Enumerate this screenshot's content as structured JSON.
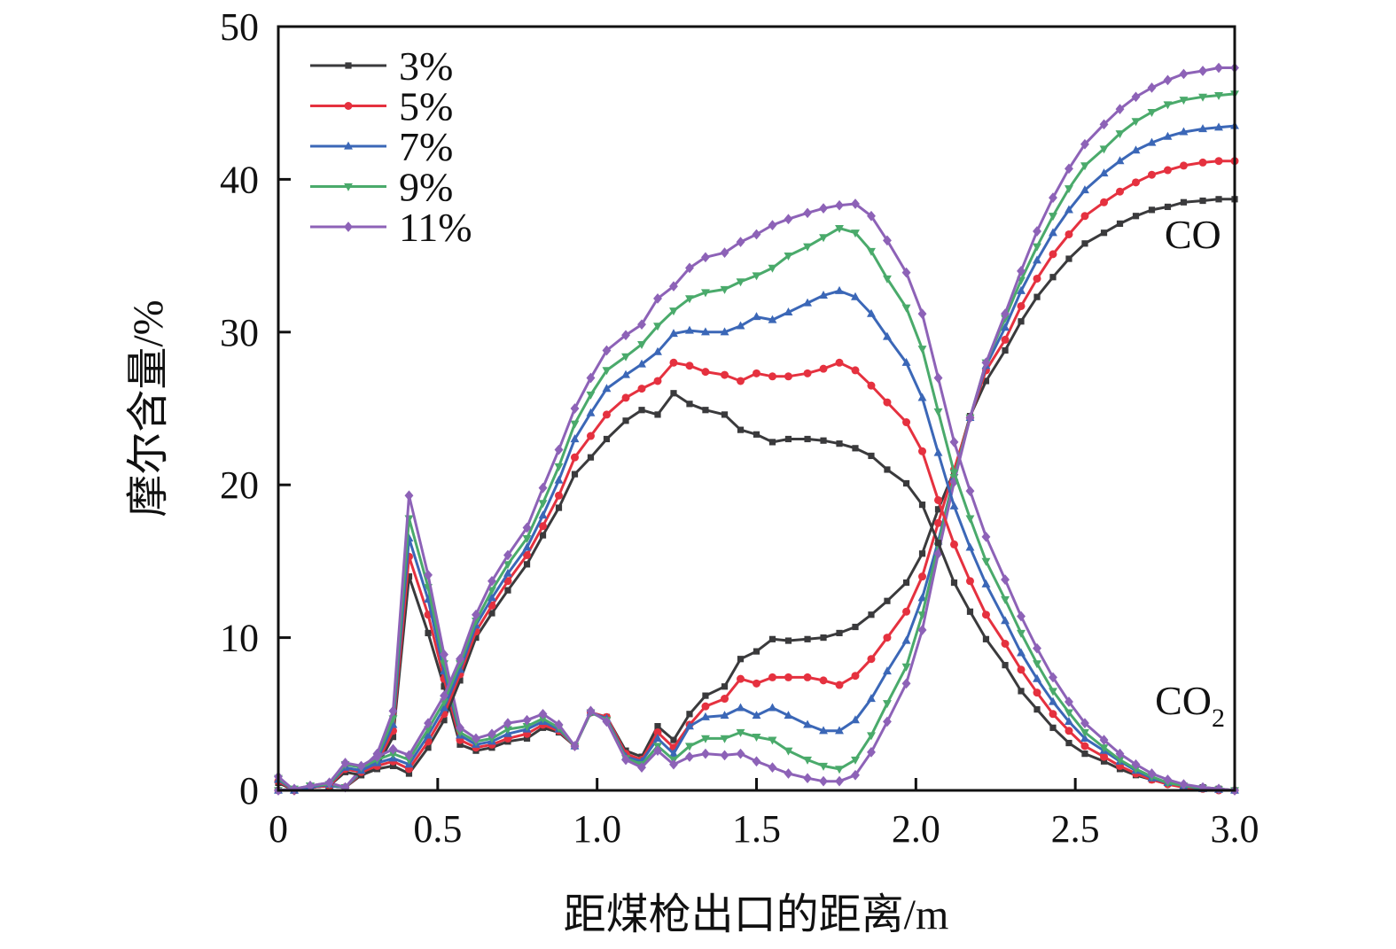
{
  "chart_data": {
    "type": "line",
    "title": "",
    "xlabel": "距煤枪出口的距离/m",
    "ylabel": "摩尔含量/%",
    "xlim": [
      0,
      3.0
    ],
    "ylim": [
      0,
      50
    ],
    "xticks": [
      "0",
      "0.5",
      "1.0",
      "1.5",
      "2.0",
      "2.5",
      "3.0"
    ],
    "xtick_values": [
      0,
      0.5,
      1.0,
      1.5,
      2.0,
      2.5,
      3.0
    ],
    "yticks": [
      "0",
      "10",
      "20",
      "30",
      "40",
      "50"
    ],
    "ytick_values": [
      0,
      10,
      20,
      30,
      40,
      50
    ],
    "grid": false,
    "legend_position": "top-left",
    "legend": [
      {
        "name": "3%",
        "color": "#3a3a3c",
        "marker": "square"
      },
      {
        "name": "5%",
        "color": "#e5313f",
        "marker": "circle"
      },
      {
        "name": "7%",
        "color": "#3b67b7",
        "marker": "triangle-up"
      },
      {
        "name": "9%",
        "color": "#4aaa6b",
        "marker": "triangle-down"
      },
      {
        "name": "11%",
        "color": "#8d62b7",
        "marker": "diamond"
      }
    ],
    "annotations": [
      {
        "text": "CO",
        "at": [
          2.78,
          35.5
        ]
      },
      {
        "text": "CO",
        "sub": "2",
        "at": [
          2.75,
          5.0
        ]
      }
    ],
    "x": [
      0,
      0.05,
      0.1,
      0.16,
      0.21,
      0.26,
      0.31,
      0.36,
      0.41,
      0.47,
      0.52,
      0.57,
      0.62,
      0.67,
      0.72,
      0.78,
      0.83,
      0.88,
      0.93,
      0.98,
      1.03,
      1.09,
      1.14,
      1.19,
      1.24,
      1.29,
      1.34,
      1.4,
      1.45,
      1.5,
      1.55,
      1.6,
      1.66,
      1.71,
      1.76,
      1.81,
      1.86,
      1.91,
      1.97,
      2.02,
      2.07,
      2.12,
      2.17,
      2.22,
      2.28,
      2.33,
      2.38,
      2.43,
      2.48,
      2.53,
      2.59,
      2.64,
      2.69,
      2.74,
      2.79,
      2.84,
      2.9,
      2.95,
      3.0
    ],
    "series": [
      {
        "name": "3%",
        "group": "CO",
        "color": "#3a3a3c",
        "marker": "square",
        "values": [
          0.5,
          0,
          0.2,
          0.3,
          0.2,
          1.0,
          1.6,
          3.5,
          14.0,
          10.3,
          6.8,
          3.0,
          2.6,
          2.8,
          3.2,
          3.4,
          4.1,
          3.8,
          2.9,
          5.1,
          4.8,
          2.6,
          2.2,
          4.2,
          3.3,
          5.0,
          6.2,
          6.8,
          8.6,
          9.1,
          9.9,
          9.8,
          9.9,
          10.0,
          10.3,
          10.7,
          11.5,
          12.4,
          13.6,
          15.5,
          18.4,
          20.9,
          24.5,
          26.8,
          28.8,
          30.7,
          32.3,
          33.6,
          34.8,
          35.8,
          36.5,
          37.1,
          37.6,
          38.0,
          38.2,
          38.5,
          38.6,
          38.7,
          38.7
        ]
      },
      {
        "name": "5%",
        "group": "CO",
        "color": "#e5313f",
        "marker": "circle",
        "values": [
          0.6,
          0,
          0.2,
          0.3,
          0.2,
          1.1,
          1.8,
          3.9,
          15.3,
          11.5,
          7.3,
          3.3,
          2.8,
          3.0,
          3.4,
          3.7,
          4.3,
          3.9,
          2.9,
          5.1,
          4.8,
          2.4,
          2.0,
          3.8,
          2.8,
          4.3,
          5.5,
          6.0,
          7.3,
          7.0,
          7.4,
          7.4,
          7.4,
          7.2,
          6.9,
          7.5,
          8.6,
          10.0,
          11.7,
          14.0,
          17.5,
          21.0,
          24.4,
          27.5,
          29.5,
          31.7,
          33.5,
          35.1,
          36.4,
          37.6,
          38.5,
          39.2,
          39.8,
          40.3,
          40.6,
          40.9,
          41.1,
          41.2,
          41.2
        ]
      },
      {
        "name": "7%",
        "group": "CO",
        "color": "#3b67b7",
        "marker": "triangle-up",
        "values": [
          0.7,
          0,
          0.2,
          0.3,
          0.2,
          1.2,
          2.0,
          4.3,
          16.5,
          12.5,
          7.8,
          3.6,
          3.0,
          3.2,
          3.7,
          4.0,
          4.5,
          4.0,
          2.9,
          5.1,
          4.7,
          2.2,
          1.9,
          3.4,
          2.4,
          4.2,
          4.8,
          4.9,
          5.4,
          4.9,
          5.4,
          4.9,
          4.3,
          3.9,
          3.9,
          4.6,
          6.0,
          7.8,
          9.8,
          12.6,
          16.3,
          20.5,
          24.4,
          27.8,
          30.3,
          32.7,
          34.7,
          36.5,
          38.0,
          39.3,
          40.4,
          41.2,
          41.9,
          42.4,
          42.8,
          43.1,
          43.3,
          43.4,
          43.5
        ]
      },
      {
        "name": "9%",
        "group": "CO",
        "color": "#4aaa6b",
        "marker": "triangle-down",
        "values": [
          0.8,
          0,
          0.3,
          0.4,
          0.2,
          1.3,
          2.2,
          4.7,
          17.8,
          13.3,
          8.3,
          3.8,
          3.2,
          3.4,
          4.0,
          4.2,
          4.7,
          4.1,
          2.9,
          5.1,
          4.6,
          2.1,
          1.7,
          2.9,
          2.0,
          2.9,
          3.4,
          3.4,
          3.8,
          3.5,
          3.3,
          2.6,
          2.0,
          1.6,
          1.4,
          2.0,
          3.6,
          5.7,
          8.1,
          11.5,
          16.0,
          20.5,
          24.4,
          28.0,
          30.9,
          33.4,
          35.6,
          37.6,
          39.4,
          40.9,
          42.0,
          43.0,
          43.8,
          44.4,
          44.9,
          45.2,
          45.4,
          45.5,
          45.6
        ]
      },
      {
        "name": "11%",
        "group": "CO",
        "color": "#8d62b7",
        "marker": "diamond",
        "values": [
          0.9,
          0,
          0.3,
          0.5,
          0.2,
          1.4,
          2.4,
          5.2,
          19.3,
          14.1,
          8.9,
          4.1,
          3.4,
          3.7,
          4.4,
          4.6,
          5.0,
          4.3,
          2.9,
          5.2,
          4.5,
          2.0,
          1.5,
          2.6,
          1.7,
          2.2,
          2.4,
          2.3,
          2.4,
          1.9,
          1.5,
          1.1,
          0.8,
          0.6,
          0.6,
          1.0,
          2.5,
          4.5,
          7.0,
          10.5,
          15.5,
          20.2,
          24.4,
          28.0,
          31.2,
          34.0,
          36.6,
          38.8,
          40.7,
          42.3,
          43.6,
          44.6,
          45.4,
          46.0,
          46.5,
          46.9,
          47.1,
          47.3,
          47.3
        ]
      },
      {
        "name": "3%",
        "group": "CO2",
        "color": "#3a3a3c",
        "marker": "square",
        "values": [
          0,
          0,
          0.2,
          0.3,
          1.2,
          1.0,
          1.4,
          1.6,
          1.1,
          2.8,
          4.6,
          7.2,
          10.0,
          11.6,
          13.1,
          14.8,
          16.7,
          18.5,
          20.7,
          21.8,
          23.0,
          24.2,
          24.9,
          24.6,
          26.0,
          25.3,
          24.9,
          24.6,
          23.6,
          23.3,
          22.8,
          23.0,
          23.0,
          22.9,
          22.7,
          22.4,
          21.9,
          21.0,
          20.1,
          18.7,
          16.2,
          13.6,
          11.7,
          9.9,
          8.2,
          6.5,
          5.3,
          4.1,
          3.1,
          2.4,
          1.9,
          1.4,
          1.0,
          0.7,
          0.5,
          0.3,
          0.2,
          0.1,
          0.0
        ]
      },
      {
        "name": "5%",
        "group": "CO2",
        "color": "#e5313f",
        "marker": "circle",
        "values": [
          0,
          0,
          0.2,
          0.3,
          1.4,
          1.2,
          1.6,
          1.9,
          1.4,
          3.2,
          5.0,
          7.6,
          10.4,
          12.1,
          13.7,
          15.4,
          17.3,
          19.3,
          21.8,
          23.2,
          24.6,
          25.7,
          26.3,
          26.8,
          28.0,
          27.8,
          27.4,
          27.2,
          26.8,
          27.3,
          27.1,
          27.1,
          27.3,
          27.6,
          28.0,
          27.5,
          26.5,
          25.4,
          24.1,
          22.2,
          19.0,
          16.1,
          13.7,
          11.5,
          9.6,
          7.9,
          6.4,
          5.0,
          3.9,
          2.9,
          2.2,
          1.6,
          1.1,
          0.7,
          0.4,
          0.2,
          0.1,
          0.0,
          0.0
        ]
      },
      {
        "name": "7%",
        "group": "CO2",
        "color": "#3b67b7",
        "marker": "triangle-up",
        "values": [
          0,
          0,
          0.2,
          0.4,
          1.5,
          1.3,
          1.8,
          2.1,
          1.7,
          3.6,
          5.4,
          7.9,
          10.8,
          12.6,
          14.2,
          15.9,
          18.0,
          20.3,
          23.0,
          24.7,
          26.3,
          27.2,
          27.9,
          28.7,
          29.9,
          30.1,
          30.0,
          30.0,
          30.4,
          31.0,
          30.8,
          31.3,
          31.9,
          32.4,
          32.7,
          32.3,
          31.2,
          29.7,
          28.0,
          25.7,
          22.1,
          18.6,
          15.9,
          13.5,
          11.1,
          9.0,
          7.3,
          5.8,
          4.5,
          3.4,
          2.6,
          1.9,
          1.3,
          0.8,
          0.5,
          0.3,
          0.1,
          0.05,
          0
        ]
      },
      {
        "name": "9%",
        "group": "CO2",
        "color": "#4aaa6b",
        "marker": "triangle-down",
        "values": [
          0,
          0.1,
          0.3,
          0.4,
          1.7,
          1.5,
          2.0,
          2.4,
          2.0,
          4.0,
          5.8,
          8.3,
          11.1,
          13.1,
          14.8,
          16.5,
          18.8,
          21.2,
          24.0,
          25.9,
          27.5,
          28.4,
          29.2,
          30.4,
          31.4,
          32.2,
          32.6,
          32.8,
          33.3,
          33.7,
          34.2,
          35.0,
          35.6,
          36.2,
          36.8,
          36.5,
          35.3,
          33.5,
          31.6,
          28.9,
          24.8,
          20.8,
          17.8,
          15.0,
          12.5,
          10.3,
          8.3,
          6.5,
          5.1,
          3.8,
          2.8,
          2.0,
          1.4,
          0.9,
          0.5,
          0.3,
          0.15,
          0.05,
          0
        ]
      },
      {
        "name": "11%",
        "group": "CO2",
        "color": "#8d62b7",
        "marker": "diamond",
        "values": [
          0,
          0.1,
          0.3,
          0.5,
          1.8,
          1.6,
          2.2,
          2.7,
          2.3,
          4.4,
          6.2,
          8.6,
          11.5,
          13.7,
          15.4,
          17.2,
          19.8,
          22.3,
          25.0,
          27.0,
          28.8,
          29.8,
          30.5,
          32.2,
          33.0,
          34.2,
          34.9,
          35.2,
          35.9,
          36.4,
          37.0,
          37.4,
          37.8,
          38.1,
          38.3,
          38.4,
          37.6,
          36.0,
          33.9,
          31.2,
          27.0,
          22.8,
          19.6,
          16.6,
          13.8,
          11.4,
          9.3,
          7.4,
          5.8,
          4.4,
          3.3,
          2.4,
          1.7,
          1.1,
          0.7,
          0.4,
          0.2,
          0.1,
          0
        ]
      }
    ]
  }
}
